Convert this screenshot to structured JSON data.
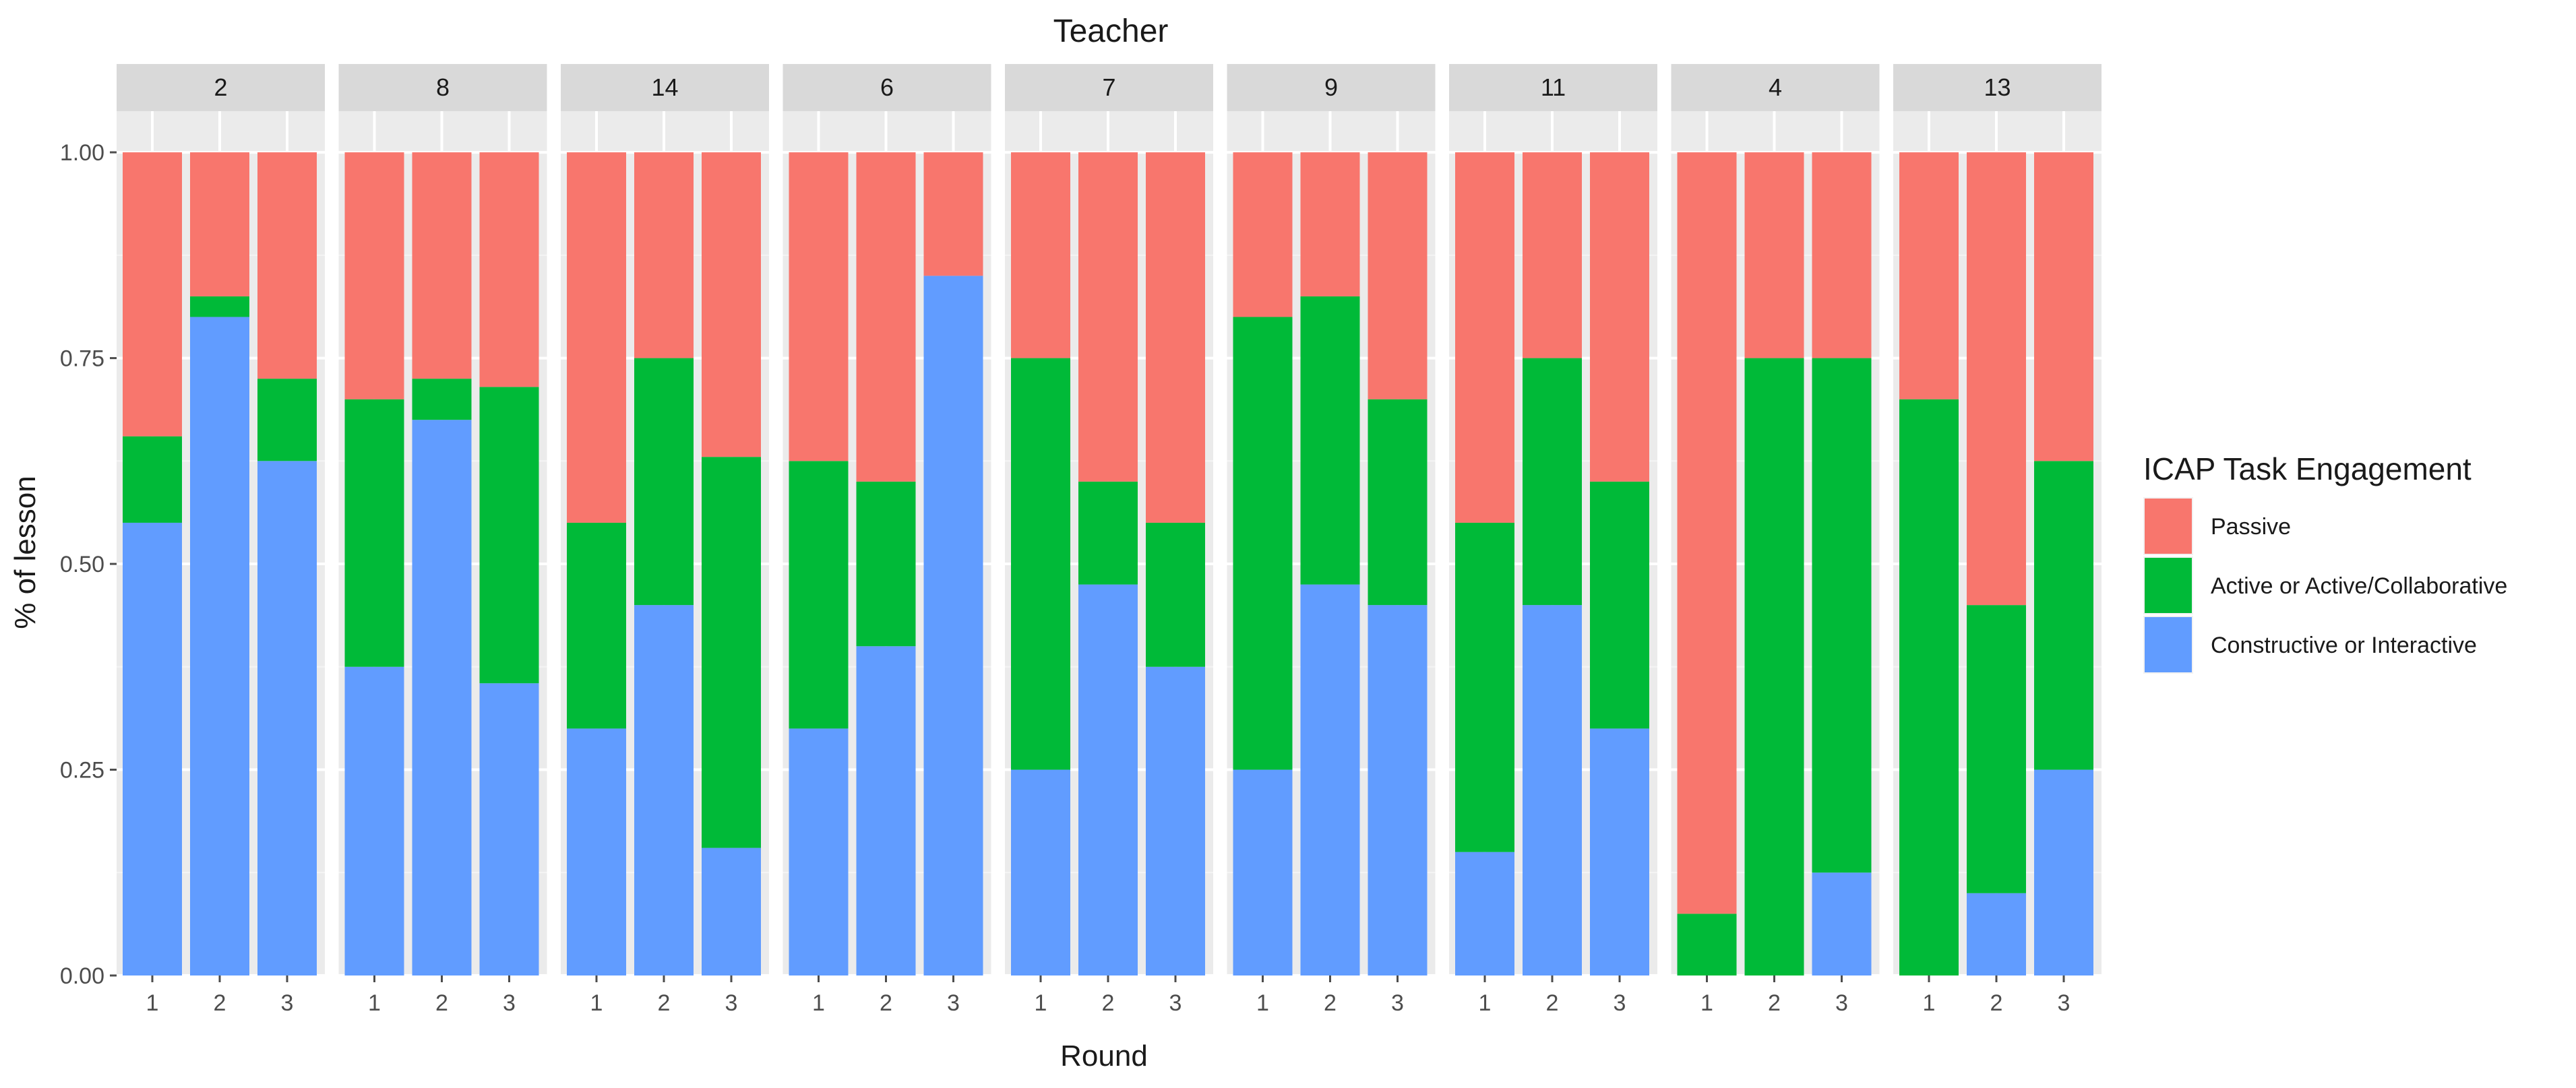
{
  "chart_data": {
    "type": "bar",
    "stacked": true,
    "title": "Teacher",
    "xlabel": "Round",
    "ylabel": "% of lesson",
    "ylim": [
      0,
      1.05
    ],
    "y_ticks": [
      "0.00",
      "0.25",
      "0.50",
      "0.75",
      "1.00"
    ],
    "categories": [
      "1",
      "2",
      "3"
    ],
    "legend": {
      "title": "ICAP Task Engagement",
      "position": "right",
      "entries": [
        {
          "name": "Passive",
          "color": "#F8766D"
        },
        {
          "name": "Active or Active/Collaborative",
          "color": "#00BA38"
        },
        {
          "name": "Constructive or Interactive",
          "color": "#619CFF"
        }
      ]
    },
    "facets": [
      {
        "teacher": "2",
        "constructive": [
          0.55,
          0.8,
          0.625
        ],
        "active": [
          0.105,
          0.025,
          0.1
        ],
        "passive": [
          0.345,
          0.175,
          0.275
        ]
      },
      {
        "teacher": "8",
        "constructive": [
          0.375,
          0.675,
          0.355
        ],
        "active": [
          0.325,
          0.05,
          0.36
        ],
        "passive": [
          0.3,
          0.275,
          0.285
        ]
      },
      {
        "teacher": "14",
        "constructive": [
          0.3,
          0.45,
          0.155
        ],
        "active": [
          0.25,
          0.3,
          0.475
        ],
        "passive": [
          0.45,
          0.25,
          0.37
        ]
      },
      {
        "teacher": "6",
        "constructive": [
          0.3,
          0.4,
          0.85
        ],
        "active": [
          0.325,
          0.2,
          0.0
        ],
        "passive": [
          0.375,
          0.4,
          0.15
        ]
      },
      {
        "teacher": "7",
        "constructive": [
          0.25,
          0.475,
          0.375
        ],
        "active": [
          0.5,
          0.125,
          0.175
        ],
        "passive": [
          0.25,
          0.4,
          0.45
        ]
      },
      {
        "teacher": "9",
        "constructive": [
          0.25,
          0.475,
          0.45
        ],
        "active": [
          0.55,
          0.35,
          0.25
        ],
        "passive": [
          0.2,
          0.175,
          0.3
        ]
      },
      {
        "teacher": "11",
        "constructive": [
          0.15,
          0.45,
          0.3
        ],
        "active": [
          0.4,
          0.3,
          0.3
        ],
        "passive": [
          0.45,
          0.25,
          0.4
        ]
      },
      {
        "teacher": "4",
        "constructive": [
          0.0,
          0.0,
          0.125
        ],
        "active": [
          0.075,
          0.75,
          0.625
        ],
        "passive": [
          0.925,
          0.25,
          0.25
        ]
      },
      {
        "teacher": "13",
        "constructive": [
          0.0,
          0.1,
          0.25
        ],
        "active": [
          0.7,
          0.35,
          0.375
        ],
        "passive": [
          0.3,
          0.55,
          0.375
        ]
      }
    ]
  }
}
